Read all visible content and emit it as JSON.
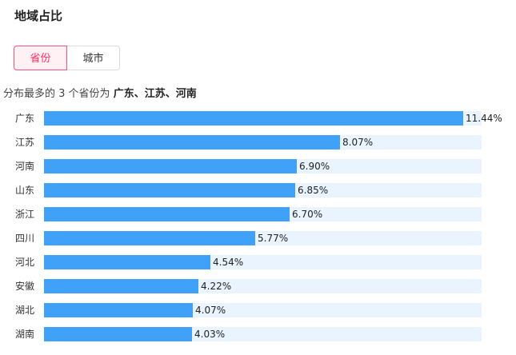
{
  "header": {
    "title": "地域占比"
  },
  "tabs": [
    {
      "label": "省份",
      "active": true
    },
    {
      "label": "城市",
      "active": false
    }
  ],
  "summary": {
    "prefix": "分布最多的 3 个省份为",
    "highlight": "广东、江苏、河南"
  },
  "colors": {
    "bar": "#3fa1f7",
    "track": "#e9f4fe",
    "accent": "#ff2d63"
  },
  "chart_data": {
    "type": "bar",
    "orientation": "horizontal",
    "categories": [
      "广东",
      "江苏",
      "河南",
      "山东",
      "浙江",
      "四川",
      "河北",
      "安徽",
      "湖北",
      "湖南"
    ],
    "values": [
      11.44,
      8.07,
      6.9,
      6.85,
      6.7,
      5.77,
      4.54,
      4.22,
      4.07,
      4.03
    ],
    "value_labels": [
      "11.44%",
      "8.07%",
      "6.90%",
      "6.85%",
      "6.70%",
      "5.77%",
      "4.54%",
      "4.22%",
      "4.07%",
      "4.03%"
    ],
    "xlim": [
      0,
      12
    ]
  }
}
